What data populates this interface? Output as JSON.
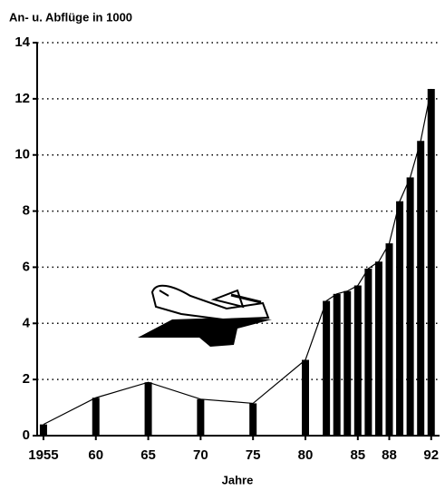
{
  "chart_data": {
    "type": "bar",
    "title": "An- u. Abflüge in 1000",
    "xlabel": "Jahre",
    "x": [
      1955,
      1960,
      1965,
      1970,
      1975,
      1980,
      1982,
      1983,
      1984,
      1985,
      1986,
      1987,
      1988,
      1989,
      1990,
      1991,
      1992
    ],
    "values": [
      0.4,
      1.35,
      1.9,
      1.3,
      1.15,
      2.7,
      4.8,
      5.05,
      5.15,
      5.35,
      5.95,
      6.2,
      6.85,
      8.35,
      9.2,
      10.5,
      12.35
    ],
    "color": "#000000",
    "line": true,
    "xlim": [
      1954.4,
      1992.8
    ],
    "xticks": [
      {
        "value": 1955,
        "label": "1955"
      },
      {
        "value": 1960,
        "label": "60"
      },
      {
        "value": 1965,
        "label": "65"
      },
      {
        "value": 1970,
        "label": "70"
      },
      {
        "value": 1975,
        "label": "75"
      },
      {
        "value": 1980,
        "label": "80"
      },
      {
        "value": 1985,
        "label": "85"
      },
      {
        "value": 1988,
        "label": "88"
      },
      {
        "value": 1992,
        "label": "92"
      }
    ],
    "ylim": [
      0,
      14
    ],
    "yticks": [
      0,
      2,
      4,
      6,
      8,
      10,
      12,
      14
    ],
    "grid": true
  }
}
